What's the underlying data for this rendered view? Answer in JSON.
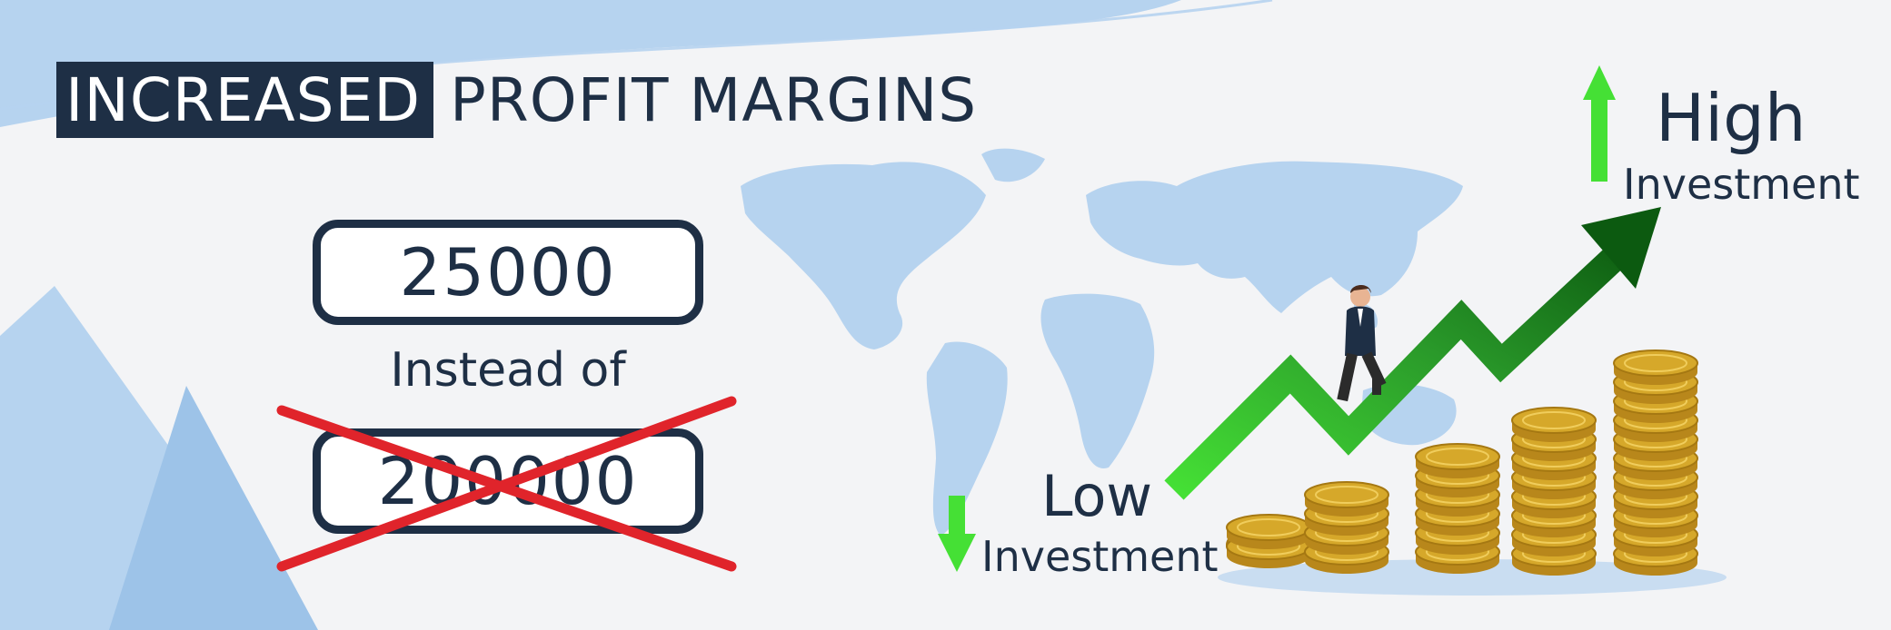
{
  "header": {
    "title_highlight": "INCREASED",
    "title_rest": "PROFIT MARGINS"
  },
  "comparison": {
    "new_amount": "25000",
    "instead_label": "Instead of",
    "old_amount": "200000"
  },
  "investment": {
    "low_word": "Low",
    "low_label": "Investment",
    "high_word": "High",
    "high_label": "Investment"
  },
  "colors": {
    "navy": "#1e2f45",
    "map_blue": "#b6d3ef",
    "cross_red": "#e0242b",
    "arrow_green_light": "#45e035",
    "arrow_green_dark": "#0c5a10",
    "coin_gold": "#d6a82a"
  },
  "icons": {
    "map": "world-map-icon",
    "businessman": "businessman-icon",
    "coins": "coin-stack-icon",
    "arrow": "growth-arrow-icon"
  }
}
